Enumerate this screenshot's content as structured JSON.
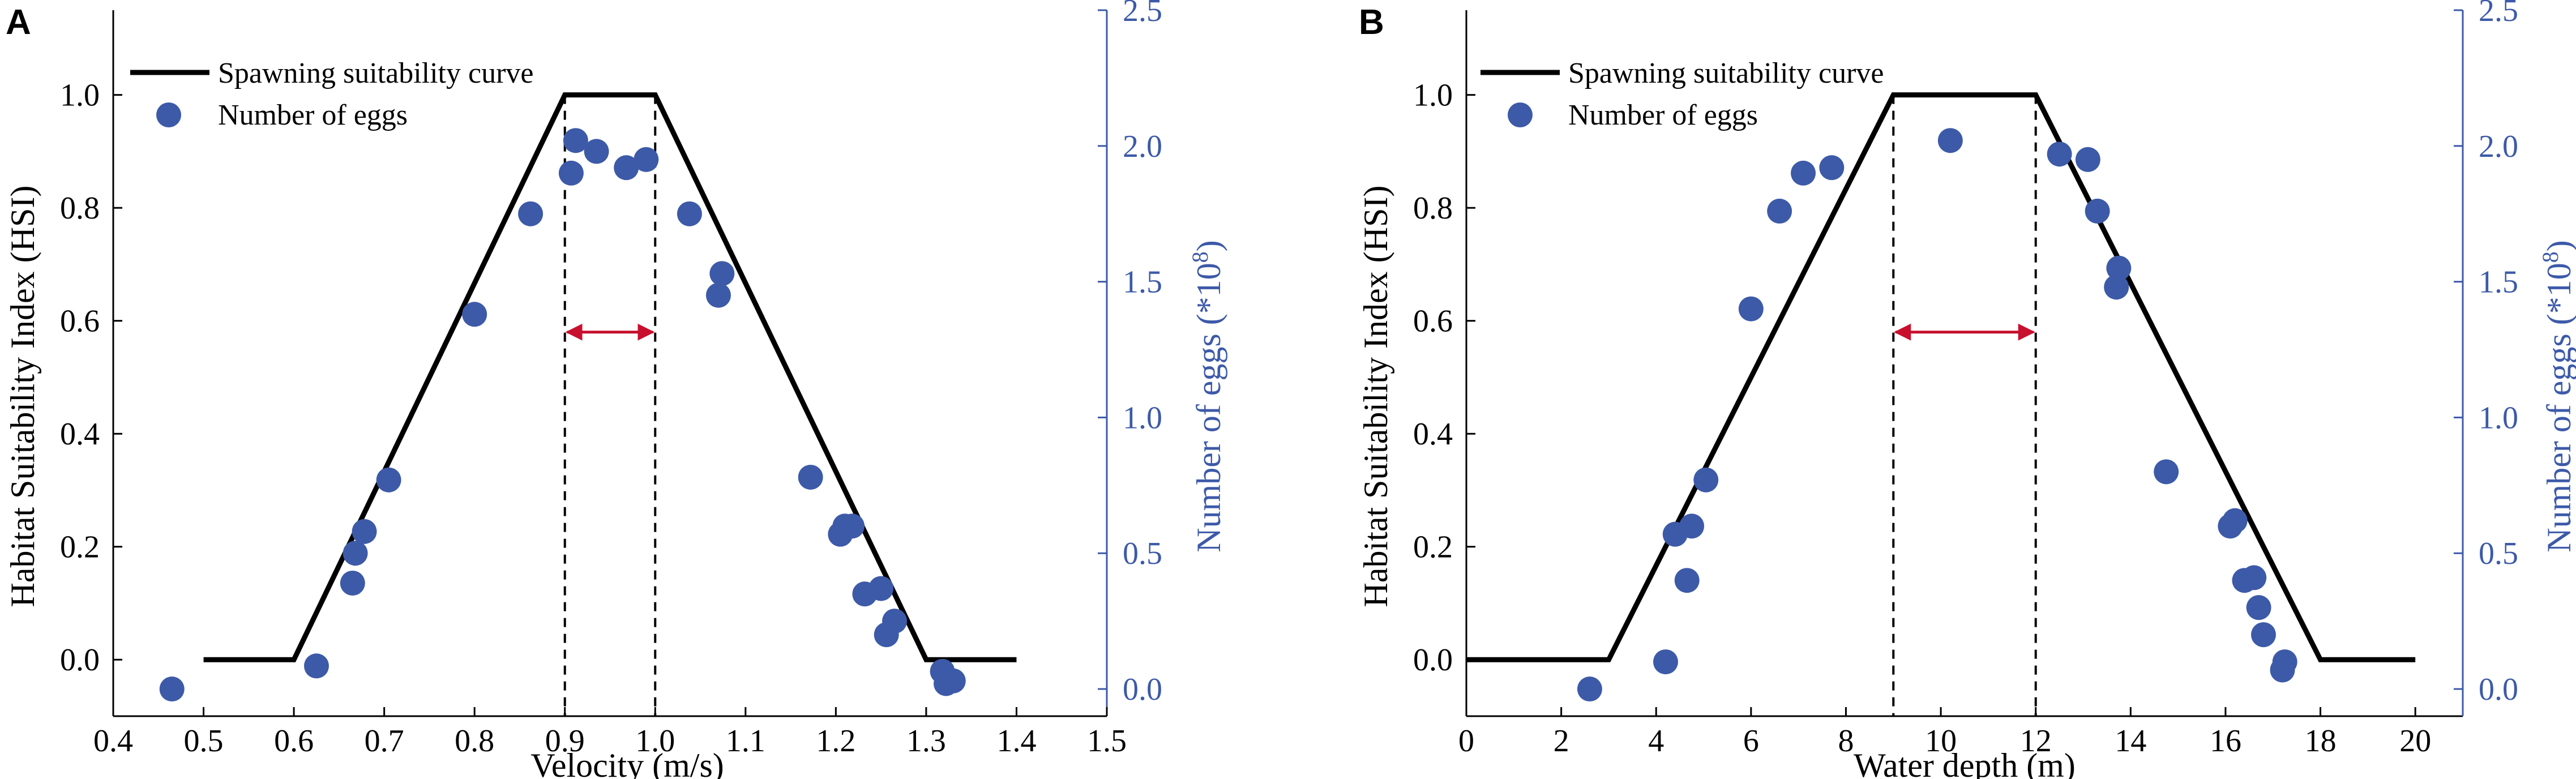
{
  "chart_data": [
    {
      "type": "line+scatter",
      "panel_label": "A",
      "xlabel": "Velocity (m/s)",
      "ylabel": "Habitat Suitability Index (HSI)",
      "y2label_main": "Number of eggs (*10",
      "y2label_sup": "8",
      "y2label_tail": ")",
      "xlim": [
        0.4,
        1.5
      ],
      "ylim": [
        -0.1,
        1.15
      ],
      "y2lim": [
        -0.1,
        2.5
      ],
      "xticks": [
        0.4,
        0.5,
        0.6,
        0.7,
        0.8,
        0.9,
        1.0,
        1.1,
        1.2,
        1.3,
        1.4,
        1.5
      ],
      "xtick_labels": [
        "0.4",
        "0.5",
        "0.6",
        "0.7",
        "0.8",
        "0.9",
        "1.0",
        "1.1",
        "1.2",
        "1.3",
        "1.4",
        "1.5"
      ],
      "yticks": [
        0.0,
        0.2,
        0.4,
        0.6,
        0.8,
        1.0
      ],
      "ytick_labels": [
        "0.0",
        "0.2",
        "0.4",
        "0.6",
        "0.8",
        "1.0"
      ],
      "y2ticks": [
        0.0,
        0.5,
        1.0,
        1.5,
        2.0,
        2.5
      ],
      "y2tick_labels": [
        "0.0",
        "0.5",
        "1.0",
        "1.5",
        "2.0",
        "2.5"
      ],
      "legend": [
        "Spawning suitability curve",
        "Number of eggs"
      ],
      "curve": {
        "x": [
          0.5,
          0.6,
          0.9,
          1.0,
          1.3,
          1.4
        ],
        "y": [
          0,
          0,
          1,
          1,
          0,
          0
        ]
      },
      "optimal_range": [
        0.9,
        1.0
      ],
      "arrow_y": 0.58,
      "eggs": {
        "x": [
          0.465,
          0.625,
          0.665,
          0.668,
          0.678,
          0.705,
          0.8,
          0.862,
          0.907,
          0.912,
          0.935,
          0.968,
          0.99,
          1.038,
          1.07,
          1.074,
          1.172,
          1.205,
          1.21,
          1.218,
          1.232,
          1.25,
          1.256,
          1.265,
          1.318,
          1.322,
          1.33
        ],
        "y": [
          0.0,
          0.085,
          0.39,
          0.5,
          0.58,
          0.77,
          1.38,
          1.75,
          1.9,
          2.02,
          1.98,
          1.92,
          1.95,
          1.75,
          1.45,
          1.53,
          0.78,
          0.57,
          0.6,
          0.6,
          0.35,
          0.37,
          0.2,
          0.25,
          0.065,
          0.02,
          0.03
        ]
      },
      "colors": {
        "curve": "#000000",
        "eggs": "#3d5aa8",
        "arrow": "#c8102e",
        "right_axis": "#3d5aa8"
      }
    },
    {
      "type": "line+scatter",
      "panel_label": "B",
      "xlabel": "Water depth (m)",
      "ylabel": "Habitat Suitability Index (HSI)",
      "y2label_main": "Number of eggs (*10",
      "y2label_sup": "8",
      "y2label_tail": ")",
      "xlim": [
        0,
        21
      ],
      "ylim": [
        -0.1,
        1.15
      ],
      "y2lim": [
        -0.1,
        2.5
      ],
      "xticks": [
        0,
        2,
        4,
        6,
        8,
        10,
        12,
        14,
        16,
        18,
        20
      ],
      "xtick_labels": [
        "0",
        "2",
        "4",
        "6",
        "8",
        "10",
        "12",
        "14",
        "16",
        "18",
        "20"
      ],
      "yticks": [
        0.0,
        0.2,
        0.4,
        0.6,
        0.8,
        1.0
      ],
      "ytick_labels": [
        "0.0",
        "0.2",
        "0.4",
        "0.6",
        "0.8",
        "1.0"
      ],
      "y2ticks": [
        0.0,
        0.5,
        1.0,
        1.5,
        2.0,
        2.5
      ],
      "y2tick_labels": [
        "0.0",
        "0.5",
        "1.0",
        "1.5",
        "2.0",
        "2.5"
      ],
      "legend": [
        "Spawning suitability curve",
        "Number of eggs"
      ],
      "curve": {
        "x": [
          0,
          3,
          9,
          12,
          18,
          20
        ],
        "y": [
          0,
          0,
          1,
          1,
          0,
          0
        ]
      },
      "optimal_range": [
        9,
        12
      ],
      "arrow_y": 0.58,
      "eggs": {
        "x": [
          2.6,
          4.2,
          4.4,
          4.65,
          4.75,
          5.05,
          6.0,
          6.6,
          7.1,
          7.7,
          10.2,
          12.5,
          13.1,
          13.3,
          13.7,
          13.75,
          14.75,
          16.1,
          16.2,
          16.4,
          16.6,
          16.7,
          16.8,
          17.2,
          17.25
        ],
        "y": [
          0.0,
          0.1,
          0.57,
          0.4,
          0.6,
          0.77,
          1.4,
          1.76,
          1.9,
          1.92,
          2.02,
          1.97,
          1.95,
          1.76,
          1.48,
          1.55,
          0.8,
          0.6,
          0.62,
          0.4,
          0.41,
          0.3,
          0.2,
          0.07,
          0.1
        ]
      },
      "colors": {
        "curve": "#000000",
        "eggs": "#3d5aa8",
        "arrow": "#c8102e",
        "right_axis": "#3d5aa8"
      }
    }
  ]
}
